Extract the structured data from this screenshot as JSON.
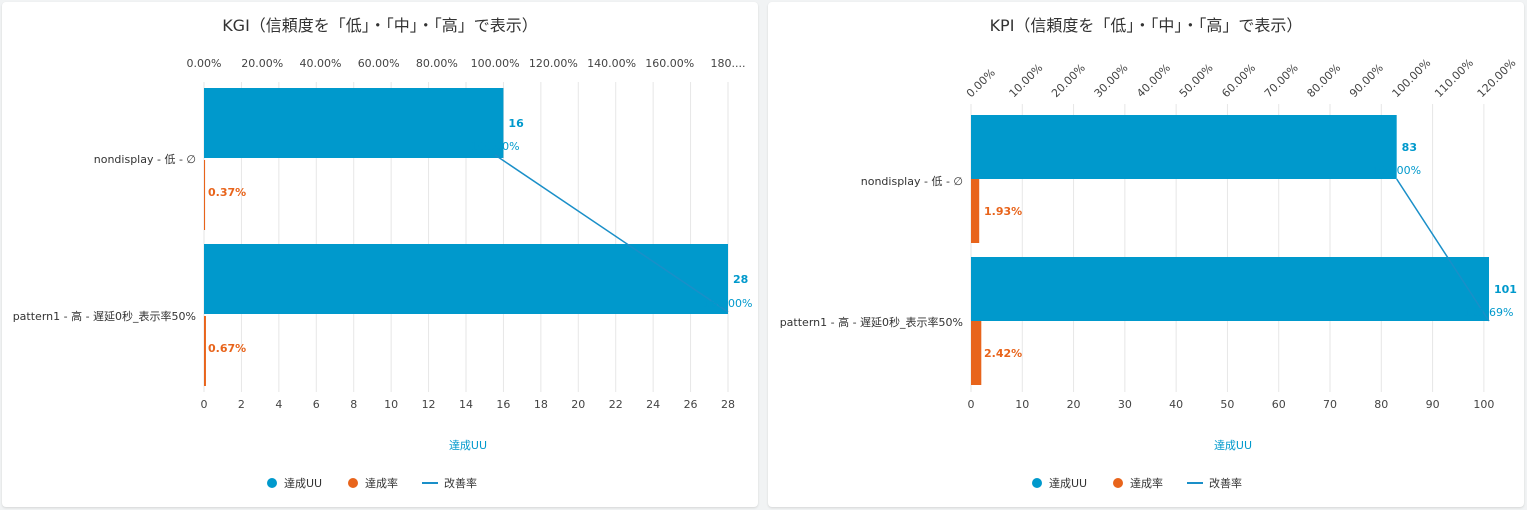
{
  "colors": {
    "uu": "#0099cc",
    "rate": "#e8641b",
    "improve": "#1a8fc8"
  },
  "legend": {
    "uu": "達成UU",
    "rate": "達成率",
    "improve": "改善率"
  },
  "chart_data": [
    {
      "type": "bar",
      "orientation": "horizontal",
      "title": "KGI（信頼度を「低」・「中」・「高」で表示）",
      "xlabel": "達成UU",
      "categories": [
        "nondisplay - 低 - ∅",
        "pattern1 - 高 - 遅延0秒_表示率50%"
      ],
      "xlim": [
        0,
        28
      ],
      "bottom_ticks": [
        "0",
        "2",
        "4",
        "6",
        "8",
        "10",
        "12",
        "14",
        "16",
        "18",
        "20",
        "22",
        "24",
        "26",
        "28"
      ],
      "top_ticks": [
        "0.00%",
        "20.00%",
        "40.00%",
        "60.00%",
        "80.00%",
        "100.00%",
        "120.00%",
        "140.00%",
        "160.00%",
        "180...."
      ],
      "top_xlim": [
        0,
        180
      ],
      "series": [
        {
          "name": "達成UU",
          "values": [
            16,
            28
          ],
          "labels": [
            "16",
            "28"
          ]
        },
        {
          "name": "達成率",
          "values": [
            0.37,
            0.67
          ],
          "labels": [
            "0.37%",
            "0.67%"
          ]
        },
        {
          "name": "改善率",
          "values": [
            100.0,
            180.0
          ],
          "labels": [
            "100.00%",
            "180.00%"
          ]
        }
      ]
    },
    {
      "type": "bar",
      "orientation": "horizontal",
      "title": "KPI（信頼度を「低」・「中」・「高」で表示）",
      "xlabel": "達成UU",
      "categories": [
        "nondisplay - 低 - ∅",
        "pattern1 - 高 - 遅延0秒_表示率50%"
      ],
      "xlim": [
        0,
        101
      ],
      "bottom_ticks": [
        "0",
        "10",
        "20",
        "30",
        "40",
        "50",
        "60",
        "70",
        "80",
        "90",
        "100"
      ],
      "top_ticks": [
        "0.00%",
        "10.00%",
        "20.00%",
        "30.00%",
        "40.00%",
        "50.00%",
        "60.00%",
        "70.00%",
        "80.00%",
        "90.00%",
        "100.00%",
        "110.00%",
        "120.00%"
      ],
      "top_xlim": [
        0,
        121.69
      ],
      "series": [
        {
          "name": "達成UU",
          "values": [
            83,
            101
          ],
          "labels": [
            "83",
            "101"
          ]
        },
        {
          "name": "達成率",
          "values": [
            1.93,
            2.42
          ],
          "labels": [
            "1.93%",
            "2.42%"
          ]
        },
        {
          "name": "改善率",
          "values": [
            100.0,
            121.69
          ],
          "labels": [
            "100.00%",
            "121.69%"
          ]
        }
      ]
    }
  ]
}
